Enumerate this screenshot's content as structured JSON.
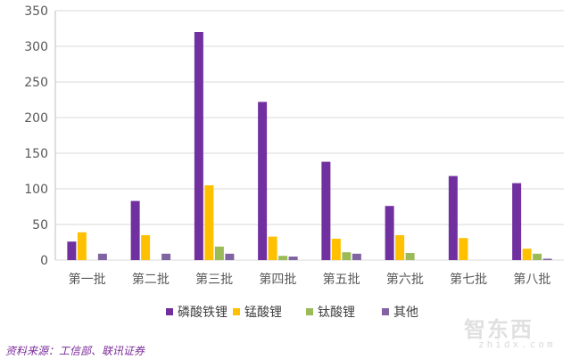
{
  "chart_data": {
    "type": "bar",
    "categories": [
      "第一批",
      "第二批",
      "第三批",
      "第四批",
      "第五批",
      "第六批",
      "第七批",
      "第八批"
    ],
    "series": [
      {
        "name": "磷酸铁锂",
        "color": "#7030a0",
        "values": [
          26,
          83,
          320,
          222,
          138,
          76,
          118,
          108
        ]
      },
      {
        "name": "锰酸锂",
        "color": "#ffc000",
        "values": [
          39,
          35,
          105,
          33,
          30,
          35,
          31,
          16
        ]
      },
      {
        "name": "钛酸锂",
        "color": "#9bbb59",
        "values": [
          0,
          0,
          19,
          6,
          11,
          10,
          0,
          9
        ]
      },
      {
        "name": "其他",
        "color": "#8064a2",
        "values": [
          9,
          9,
          9,
          5,
          9,
          0,
          0,
          2
        ]
      }
    ],
    "ylim": [
      0,
      350
    ],
    "yticks": [
      0,
      50,
      100,
      150,
      200,
      250,
      300,
      350
    ],
    "grid": true,
    "legend": "bottom",
    "title": "",
    "xlabel": "",
    "ylabel": ""
  },
  "source": "资料来源：工信部、联讯证券",
  "watermark": {
    "main": "智东西",
    "sub": "zhidx.com"
  }
}
